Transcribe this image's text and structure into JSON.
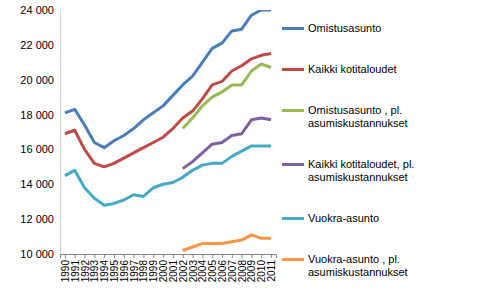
{
  "chart_data": {
    "type": "line",
    "categories": [
      "1990",
      "1991",
      "1992",
      "1993",
      "1994",
      "1995",
      "1996",
      "1997",
      "1998",
      "1999",
      "2000",
      "2001",
      "2002",
      "2003",
      "2004",
      "2005",
      "2006",
      "2007",
      "2008",
      "2009",
      "2010",
      "2011"
    ],
    "series": [
      {
        "name": "Omistusasunto",
        "color": "#4a7ebb",
        "values": [
          18100,
          18300,
          17400,
          16400,
          16100,
          16500,
          16800,
          17200,
          17700,
          18100,
          18500,
          19100,
          19700,
          20200,
          21000,
          21800,
          22100,
          22800,
          22900,
          23700,
          24000,
          24000
        ]
      },
      {
        "name": "Kaikki kotitaloudet",
        "color": "#be4b48",
        "values": [
          16900,
          17100,
          16000,
          15200,
          15000,
          15200,
          15500,
          15800,
          16100,
          16400,
          16700,
          17200,
          17800,
          18200,
          18900,
          19700,
          19900,
          20500,
          20800,
          21200,
          21400,
          21500
        ]
      },
      {
        "name": "Omistusasunto , pl. asumiskustannukset",
        "color": "#98b954",
        "values": [
          null,
          null,
          null,
          null,
          null,
          null,
          null,
          null,
          null,
          null,
          null,
          null,
          17200,
          17800,
          18500,
          19000,
          19300,
          19700,
          19700,
          20500,
          20900,
          20700
        ]
      },
      {
        "name": "Kaikki kotitaloudet, pl. asumiskustannukset",
        "color": "#7d60a0",
        "values": [
          null,
          null,
          null,
          null,
          null,
          null,
          null,
          null,
          null,
          null,
          null,
          null,
          14900,
          15300,
          15800,
          16300,
          16400,
          16800,
          16900,
          17700,
          17800,
          17700
        ]
      },
      {
        "name": "Vuokra-asunto",
        "color": "#46aac5",
        "values": [
          14500,
          14800,
          13800,
          13200,
          12800,
          12900,
          13100,
          13400,
          13300,
          13800,
          14000,
          14100,
          14400,
          14800,
          15100,
          15200,
          15200,
          15600,
          15900,
          16200,
          16200,
          16200
        ]
      },
      {
        "name": "Vuokra-asunto , pl. asumiskustannukset",
        "color": "#f79646",
        "values": [
          null,
          null,
          null,
          null,
          null,
          null,
          null,
          null,
          null,
          null,
          null,
          null,
          10200,
          10400,
          10600,
          10600,
          10600,
          10700,
          10800,
          11100,
          10900,
          10900
        ]
      }
    ],
    "ylim": [
      10000,
      24000
    ],
    "yticks": [
      {
        "value": 10000,
        "label": "10 000"
      },
      {
        "value": 12000,
        "label": "12 000"
      },
      {
        "value": 14000,
        "label": "14 000"
      },
      {
        "value": 16000,
        "label": "16 000"
      },
      {
        "value": 18000,
        "label": "18 000"
      },
      {
        "value": 20000,
        "label": "20 000"
      },
      {
        "value": 22000,
        "label": "22 000"
      },
      {
        "value": 24000,
        "label": "24 000"
      }
    ],
    "grid": false,
    "legend": "right"
  }
}
